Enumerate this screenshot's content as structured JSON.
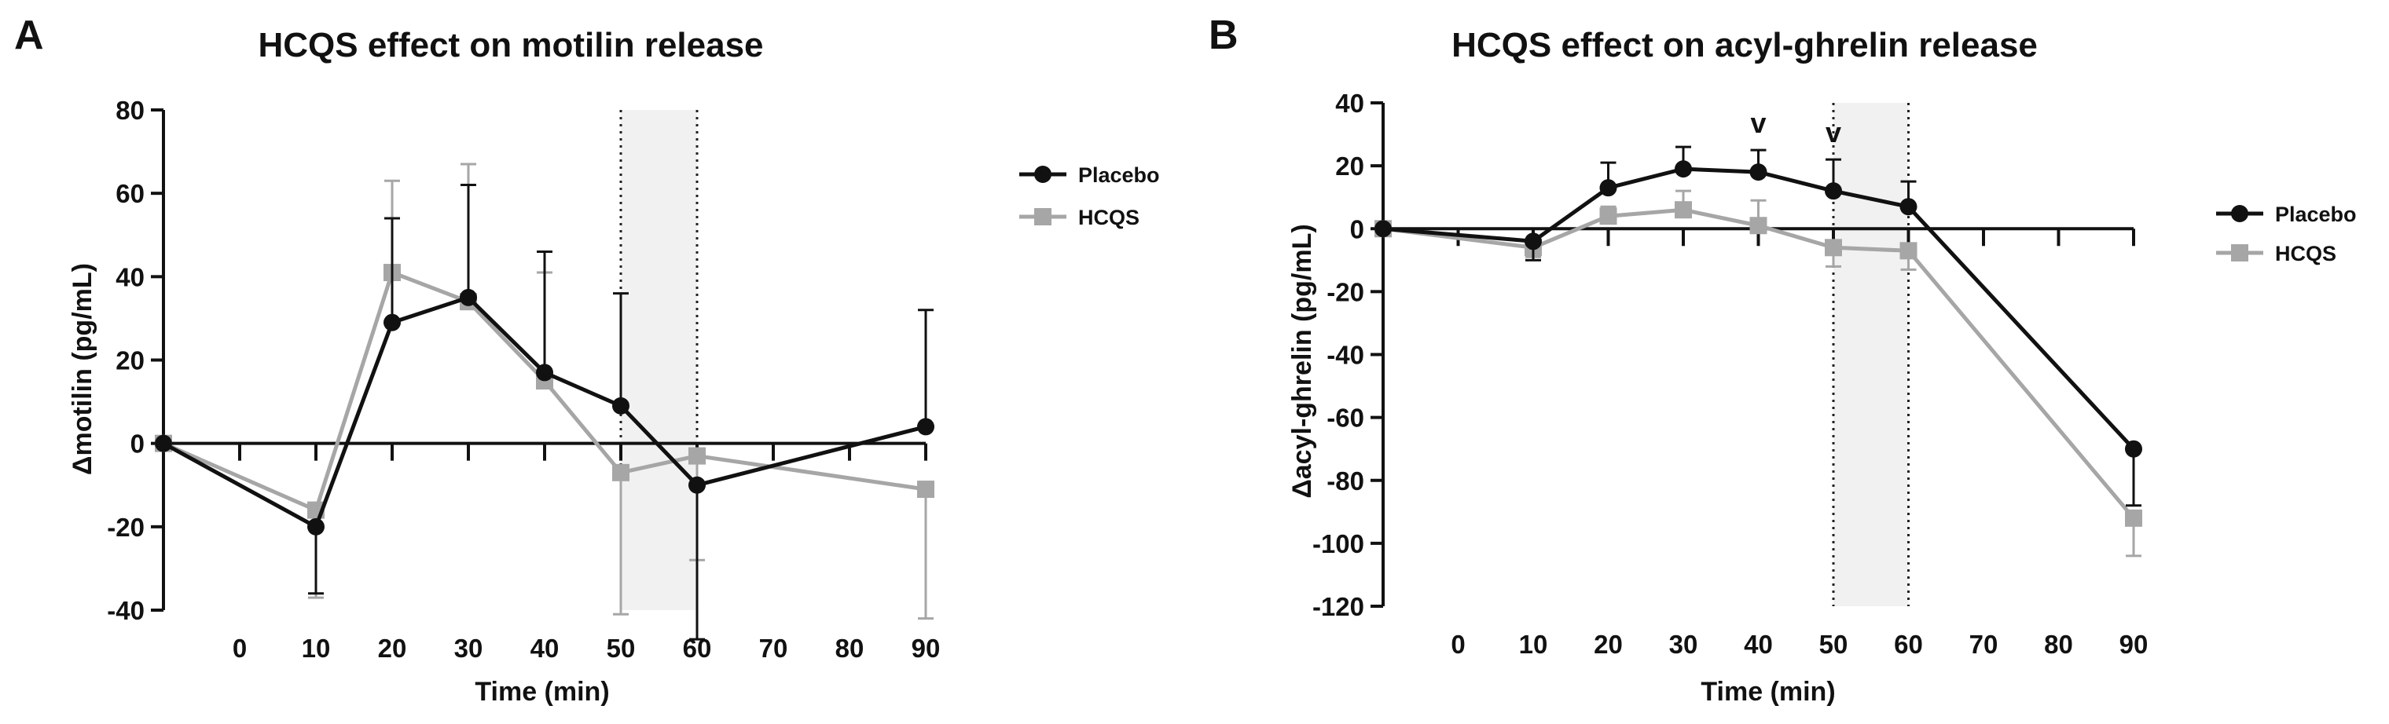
{
  "chart_data": [
    {
      "type": "line",
      "panel_label": "A",
      "title": "HCQS effect on motilin release",
      "xlabel": "Time (min)",
      "ylabel": "Δmotilin (pg/mL)",
      "x_ticks": [
        0,
        10,
        20,
        30,
        40,
        50,
        60,
        70,
        80,
        90
      ],
      "y_ticks": [
        -40,
        -20,
        0,
        20,
        40,
        60,
        80
      ],
      "ylim": [
        -40,
        80
      ],
      "xlim": [
        -10,
        90
      ],
      "shaded_region": {
        "x_start": 50,
        "x_end": 60
      },
      "legend_position": "right",
      "series": [
        {
          "name": "Placebo",
          "color": "#111111",
          "marker": "circle",
          "x": [
            -10,
            10,
            20,
            30,
            40,
            50,
            60,
            90
          ],
          "values": [
            0,
            -20,
            29,
            35,
            17,
            9,
            -10,
            4
          ],
          "error_bars": [
            0,
            16,
            25,
            27,
            29,
            27,
            37,
            28
          ]
        },
        {
          "name": "HCQS",
          "color": "#a6a6a6",
          "marker": "square",
          "x": [
            -10,
            10,
            20,
            30,
            40,
            50,
            60,
            90
          ],
          "values": [
            0,
            -16,
            41,
            34,
            15,
            -7,
            -3,
            -11
          ],
          "error_bars": [
            0,
            21,
            22,
            33,
            26,
            34,
            25,
            31
          ]
        }
      ],
      "annotations": []
    },
    {
      "type": "line",
      "panel_label": "B",
      "title": "HCQS effect on acyl-ghrelin release",
      "xlabel": "Time (min)",
      "ylabel": "Δacyl-ghrelin (pg/mL)",
      "x_ticks": [
        0,
        10,
        20,
        30,
        40,
        50,
        60,
        70,
        80,
        90
      ],
      "y_ticks": [
        -120,
        -100,
        -80,
        -60,
        -40,
        -20,
        0,
        20,
        40
      ],
      "ylim": [
        -120,
        40
      ],
      "xlim": [
        -10,
        90
      ],
      "shaded_region": {
        "x_start": 50,
        "x_end": 60
      },
      "legend_position": "right",
      "series": [
        {
          "name": "Placebo",
          "color": "#111111",
          "marker": "circle",
          "x": [
            -10,
            10,
            20,
            30,
            40,
            50,
            60,
            90
          ],
          "values": [
            0,
            -4,
            13,
            19,
            18,
            12,
            7,
            -70
          ],
          "error_bars": [
            0,
            6,
            8,
            7,
            7,
            10,
            8,
            18
          ]
        },
        {
          "name": "HCQS",
          "color": "#a6a6a6",
          "marker": "square",
          "x": [
            -10,
            10,
            20,
            30,
            40,
            50,
            60,
            90
          ],
          "values": [
            0,
            -6,
            4,
            6,
            1,
            -6,
            -7,
            -92
          ],
          "error_bars": [
            0,
            3,
            3,
            6,
            8,
            6,
            6,
            12
          ]
        }
      ],
      "annotations": [
        {
          "x": 40,
          "text": "v"
        },
        {
          "x": 50,
          "text": "v"
        }
      ]
    }
  ]
}
